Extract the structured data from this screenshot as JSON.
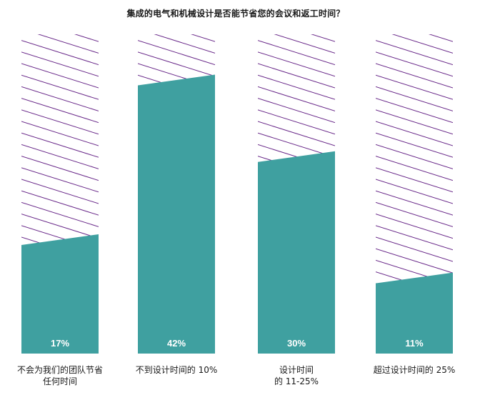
{
  "title": "集成的电气和机械设计是否能节省您的会议和返工时间？",
  "colors": {
    "bar": "#3fa0a0",
    "hatch": "#6a2a8a",
    "label": "#ffffff"
  },
  "chart_data": {
    "type": "bar",
    "title": "集成的电气和机械设计是否能节省您的会议和返工时间？",
    "categories": [
      [
        "不会为我们的团队节省",
        "任何时间"
      ],
      [
        "不到设计时间的 10%"
      ],
      [
        "设计时间",
        "的 11-25%"
      ],
      [
        "超过设计时间的 25%"
      ]
    ],
    "values": [
      17,
      42,
      30,
      11
    ],
    "value_labels": [
      "17%",
      "42%",
      "30%",
      "11%"
    ],
    "ylim": [
      0,
      50
    ],
    "grid": false,
    "legend": "none"
  }
}
